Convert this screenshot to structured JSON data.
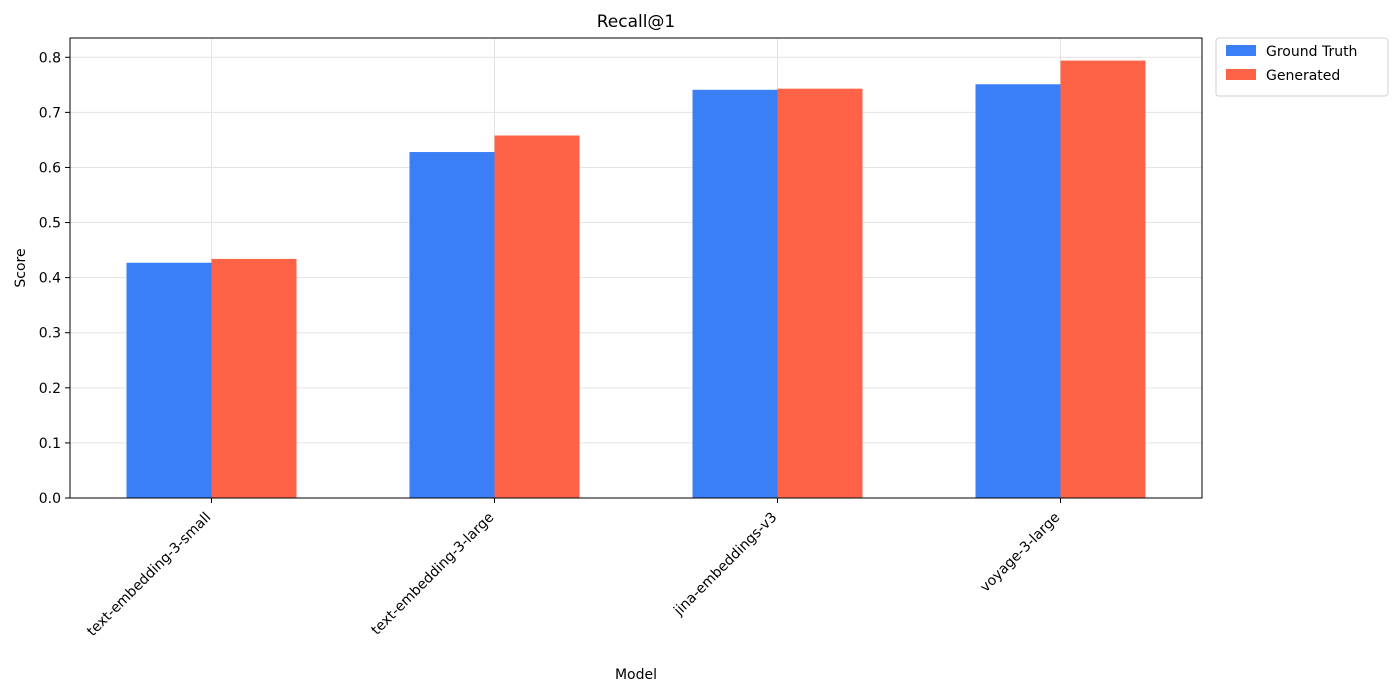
{
  "chart_data": {
    "type": "bar",
    "title": "Recall@1",
    "xlabel": "Model",
    "ylabel": "Score",
    "categories": [
      "text-embedding-3-small",
      "text-embedding-3-large",
      "jina-embeddings-v3",
      "voyage-3-large"
    ],
    "series": [
      {
        "name": "Ground Truth",
        "color": "#3a7ff6",
        "values": [
          0.427,
          0.628,
          0.741,
          0.751
        ]
      },
      {
        "name": "Generated",
        "color": "#ff6347",
        "values": [
          0.434,
          0.658,
          0.743,
          0.794
        ]
      }
    ],
    "ylim": [
      0,
      0.835
    ],
    "yticks": [
      "0.0",
      "0.1",
      "0.2",
      "0.3",
      "0.4",
      "0.5",
      "0.6",
      "0.7",
      "0.8"
    ],
    "grid": true,
    "legend_position": "outside-top-right"
  }
}
